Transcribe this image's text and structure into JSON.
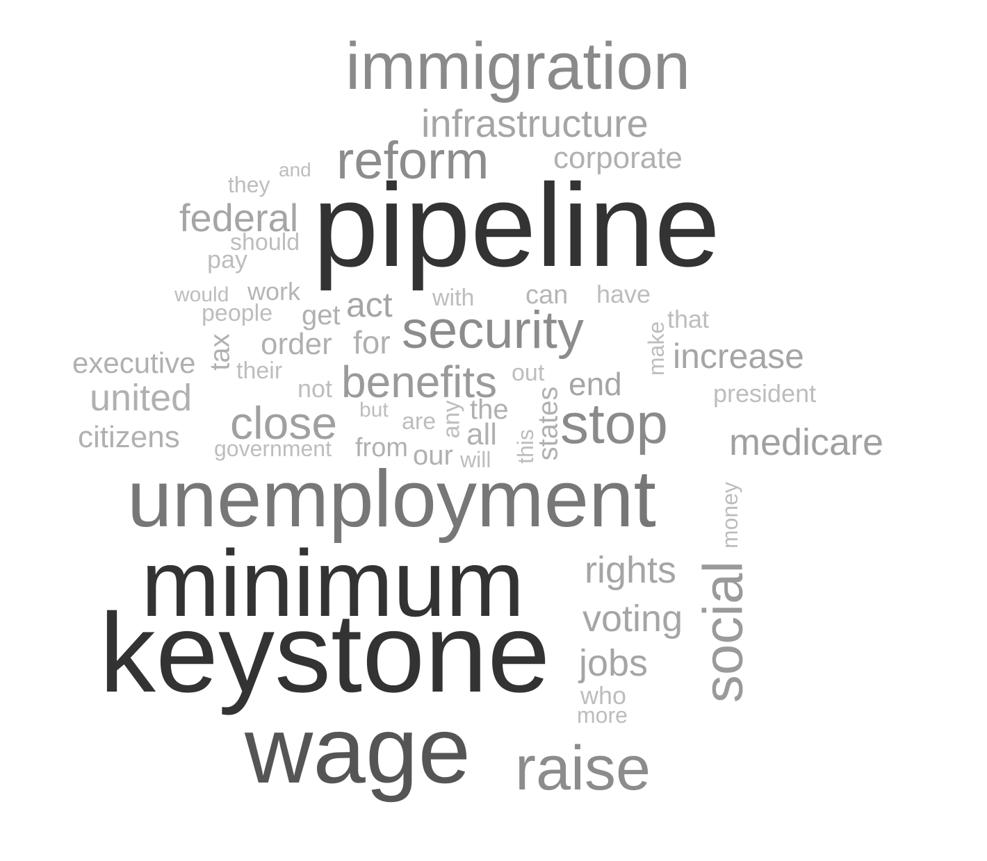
{
  "colors": {
    "background": "#ffffff",
    "dark": "#333333",
    "dark_mid": "#555555",
    "mid": "#777777",
    "mid_light": "#8c8c8c",
    "light": "#a0a0a0",
    "lighter": "#b0b0b0",
    "lightest": "#bdbdbd"
  },
  "words": [
    {
      "text": "immigration",
      "color": "#8a8a8a",
      "vertical": false
    },
    {
      "text": "infrastructure",
      "color": "#a5a5a5",
      "vertical": false
    },
    {
      "text": "reform",
      "color": "#8c8c8c",
      "vertical": false
    },
    {
      "text": "corporate",
      "color": "#b0b0b0",
      "vertical": false
    },
    {
      "text": "and",
      "color": "#bdbdbd",
      "vertical": false
    },
    {
      "text": "they",
      "color": "#bdbdbd",
      "vertical": false
    },
    {
      "text": "pipeline",
      "color": "#333333",
      "vertical": false
    },
    {
      "text": "federal",
      "color": "#a5a5a5",
      "vertical": false
    },
    {
      "text": "should",
      "color": "#bdbdbd",
      "vertical": false
    },
    {
      "text": "pay",
      "color": "#bdbdbd",
      "vertical": false
    },
    {
      "text": "would",
      "color": "#bdbdbd",
      "vertical": false
    },
    {
      "text": "work",
      "color": "#b5b5b5",
      "vertical": false
    },
    {
      "text": "people",
      "color": "#bdbdbd",
      "vertical": false
    },
    {
      "text": "get",
      "color": "#b0b0b0",
      "vertical": false
    },
    {
      "text": "act",
      "color": "#a5a5a5",
      "vertical": false
    },
    {
      "text": "with",
      "color": "#bdbdbd",
      "vertical": false
    },
    {
      "text": "can",
      "color": "#b5b5b5",
      "vertical": false
    },
    {
      "text": "have",
      "color": "#bdbdbd",
      "vertical": false
    },
    {
      "text": "security",
      "color": "#8c8c8c",
      "vertical": false
    },
    {
      "text": "that",
      "color": "#bdbdbd",
      "vertical": false
    },
    {
      "text": "make",
      "color": "#bdbdbd",
      "vertical": true
    },
    {
      "text": "tax",
      "color": "#b0b0b0",
      "vertical": true
    },
    {
      "text": "order",
      "color": "#b0b0b0",
      "vertical": false
    },
    {
      "text": "for",
      "color": "#b0b0b0",
      "vertical": false
    },
    {
      "text": "executive",
      "color": "#b0b0b0",
      "vertical": false
    },
    {
      "text": "increase",
      "color": "#a5a5a5",
      "vertical": false
    },
    {
      "text": "their",
      "color": "#bdbdbd",
      "vertical": false
    },
    {
      "text": "benefits",
      "color": "#9a9a9a",
      "vertical": false
    },
    {
      "text": "out",
      "color": "#bdbdbd",
      "vertical": false
    },
    {
      "text": "end",
      "color": "#a5a5a5",
      "vertical": false
    },
    {
      "text": "not",
      "color": "#bdbdbd",
      "vertical": false
    },
    {
      "text": "united",
      "color": "#b0b0b0",
      "vertical": false
    },
    {
      "text": "president",
      "color": "#bdbdbd",
      "vertical": false
    },
    {
      "text": "but",
      "color": "#bdbdbd",
      "vertical": false
    },
    {
      "text": "the",
      "color": "#b0b0b0",
      "vertical": false
    },
    {
      "text": "stop",
      "color": "#8a8a8a",
      "vertical": false
    },
    {
      "text": "close",
      "color": "#a0a0a0",
      "vertical": false
    },
    {
      "text": "are",
      "color": "#bdbdbd",
      "vertical": false
    },
    {
      "text": "any",
      "color": "#bdbdbd",
      "vertical": true
    },
    {
      "text": "states",
      "color": "#b0b0b0",
      "vertical": true
    },
    {
      "text": "citizens",
      "color": "#b0b0b0",
      "vertical": false
    },
    {
      "text": "all",
      "color": "#b0b0b0",
      "vertical": false
    },
    {
      "text": "this",
      "color": "#bdbdbd",
      "vertical": true
    },
    {
      "text": "medicare",
      "color": "#a0a0a0",
      "vertical": false
    },
    {
      "text": "government",
      "color": "#bdbdbd",
      "vertical": false
    },
    {
      "text": "from",
      "color": "#b0b0b0",
      "vertical": false
    },
    {
      "text": "our",
      "color": "#b0b0b0",
      "vertical": false
    },
    {
      "text": "will",
      "color": "#bdbdbd",
      "vertical": false
    },
    {
      "text": "unemployment",
      "color": "#777777",
      "vertical": false
    },
    {
      "text": "money",
      "color": "#bdbdbd",
      "vertical": true
    },
    {
      "text": "minimum",
      "color": "#333333",
      "vertical": false
    },
    {
      "text": "rights",
      "color": "#a5a5a5",
      "vertical": false
    },
    {
      "text": "social",
      "color": "#9a9a9a",
      "vertical": true
    },
    {
      "text": "voting",
      "color": "#a5a5a5",
      "vertical": false
    },
    {
      "text": "keystone",
      "color": "#333333",
      "vertical": false
    },
    {
      "text": "jobs",
      "color": "#a5a5a5",
      "vertical": false
    },
    {
      "text": "who",
      "color": "#bdbdbd",
      "vertical": false
    },
    {
      "text": "more",
      "color": "#bdbdbd",
      "vertical": false
    },
    {
      "text": "wage",
      "color": "#555555",
      "vertical": false
    },
    {
      "text": "raise",
      "color": "#8c8c8c",
      "vertical": false
    }
  ]
}
